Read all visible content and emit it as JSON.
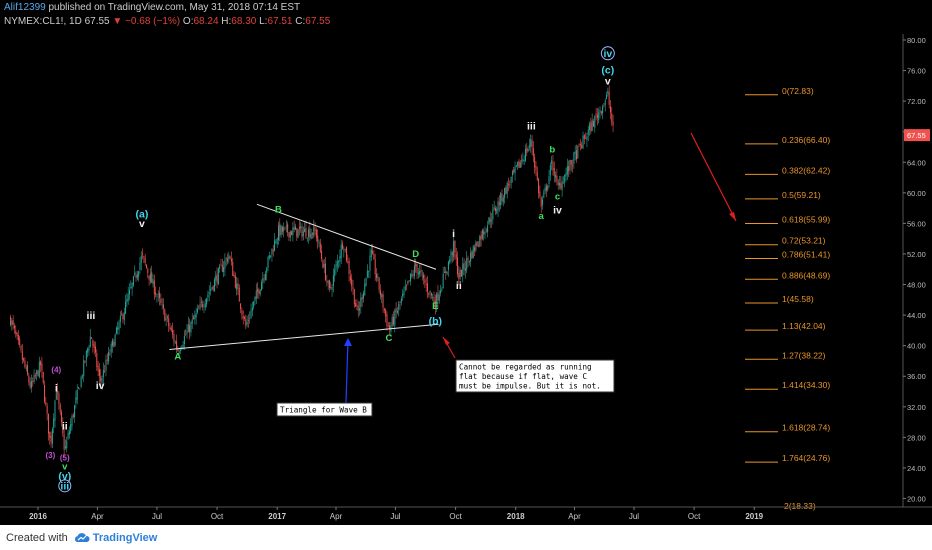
{
  "header": {
    "author": "Alif12399",
    "published": "published on TradingView.com, May 31, 2018 07:14 EST",
    "symbol": "NYMEX:CL1!, 1D",
    "last": "67.55",
    "change": "−0.68 (−1%)",
    "open_label": "O:",
    "open": "68.24",
    "high_label": "H:",
    "high": "68.30",
    "low_label": "L:",
    "low": "67.51",
    "close_label": "C:",
    "close": "67.55"
  },
  "footer": {
    "created": "Created with",
    "brand": "TradingView"
  },
  "price_tag": "67.55",
  "colors": {
    "up": "#26a69a",
    "down": "#ef5350",
    "fib": "#e8952a",
    "annotation_arrow_red": "#e02020",
    "annotation_arrow_blue": "#2040ff",
    "wave_cyan": "#40d8f0",
    "wave_green": "#40e060",
    "wave_purple": "#c050d0",
    "price_tag": "#ef5350"
  },
  "chart_data": {
    "type": "candlestick",
    "x_ticks": [
      "2016",
      "Apr",
      "Jul",
      "Oct",
      "2017",
      "Apr",
      "Jul",
      "Oct",
      "2018",
      "Apr",
      "Jul",
      "Oct",
      "2019"
    ],
    "y_ticks": [
      "80.00",
      "76.00",
      "72.00",
      "68.00",
      "64.00",
      "60.00",
      "56.00",
      "52.00",
      "48.00",
      "44.00",
      "40.00",
      "36.00",
      "32.00",
      "28.00",
      "24.00",
      "20.00"
    ],
    "ylim": [
      19,
      81
    ],
    "price_path": [
      {
        "date": "2015-11-20",
        "price": 43.5
      },
      {
        "date": "2015-12-21",
        "price": 34.5
      },
      {
        "date": "2016-01-05",
        "price": 37.5
      },
      {
        "date": "2016-01-20",
        "price": 27.0
      },
      {
        "date": "2016-01-29",
        "price": 34.5
      },
      {
        "date": "2016-02-11",
        "price": 26.2
      },
      {
        "date": "2016-03-22",
        "price": 41.5
      },
      {
        "date": "2016-04-05",
        "price": 35.2
      },
      {
        "date": "2016-06-08",
        "price": 51.7
      },
      {
        "date": "2016-08-02",
        "price": 39.5
      },
      {
        "date": "2016-10-19",
        "price": 51.9
      },
      {
        "date": "2016-11-14",
        "price": 42.5
      },
      {
        "date": "2017-01-03",
        "price": 55.0
      },
      {
        "date": "2017-03-01",
        "price": 54.9
      },
      {
        "date": "2017-03-22",
        "price": 47.0
      },
      {
        "date": "2017-04-12",
        "price": 53.8
      },
      {
        "date": "2017-05-04",
        "price": 44.0
      },
      {
        "date": "2017-05-25",
        "price": 52.0
      },
      {
        "date": "2017-06-21",
        "price": 42.0
      },
      {
        "date": "2017-08-01",
        "price": 50.4
      },
      {
        "date": "2017-08-31",
        "price": 45.6
      },
      {
        "date": "2017-09-28",
        "price": 52.9
      },
      {
        "date": "2017-10-06",
        "price": 49.0
      },
      {
        "date": "2018-01-25",
        "price": 66.7
      },
      {
        "date": "2018-02-09",
        "price": 58.1
      },
      {
        "date": "2018-02-26",
        "price": 64.0
      },
      {
        "date": "2018-03-06",
        "price": 60.5
      },
      {
        "date": "2018-05-22",
        "price": 72.8
      },
      {
        "date": "2018-05-31",
        "price": 67.55
      }
    ],
    "fibonacci": [
      {
        "ratio": "0",
        "value": "72.83"
      },
      {
        "ratio": "0.236",
        "value": "66.40"
      },
      {
        "ratio": "0.382",
        "value": "62.42"
      },
      {
        "ratio": "0.5",
        "value": "59.21"
      },
      {
        "ratio": "0.618",
        "value": "55.99"
      },
      {
        "ratio": "0.72",
        "value": "53.21"
      },
      {
        "ratio": "0.786",
        "value": "51.41"
      },
      {
        "ratio": "0.886",
        "value": "48.69"
      },
      {
        "ratio": "1",
        "value": "45.58"
      },
      {
        "ratio": "1.13",
        "value": "42.04"
      },
      {
        "ratio": "1.27",
        "value": "38.22"
      },
      {
        "ratio": "1.414",
        "value": "34.30"
      },
      {
        "ratio": "1.618",
        "value": "28.74"
      },
      {
        "ratio": "1.764",
        "value": "24.76"
      },
      {
        "ratio": "2",
        "value": "18.33"
      }
    ],
    "wave_labels": [
      {
        "text": "(3)",
        "date": "2016-01-20",
        "price": 25.3,
        "color": "purple"
      },
      {
        "text": "(4)",
        "date": "2016-01-29",
        "price": 36.5,
        "color": "purple"
      },
      {
        "text": "i",
        "date": "2016-01-29",
        "price": 34.0,
        "color": "white"
      },
      {
        "text": "ii",
        "date": "2016-02-11",
        "price": 29.0,
        "color": "white"
      },
      {
        "text": "(5)",
        "date": "2016-02-11",
        "price": 25.0,
        "color": "purple"
      },
      {
        "text": "v",
        "date": "2016-02-11",
        "price": 23.8,
        "color": "green"
      },
      {
        "text": "(v)",
        "date": "2016-02-11",
        "price": 22.5,
        "color": "cyan"
      },
      {
        "text": "iii",
        "date": "2016-02-11",
        "price": 21.2,
        "color": "cyan"
      },
      {
        "text": "iii",
        "date": "2016-03-22",
        "price": 43.5,
        "color": "white"
      },
      {
        "text": "iv",
        "date": "2016-04-05",
        "price": 34.3,
        "color": "white"
      },
      {
        "text": "(a)",
        "date": "2016-06-08",
        "price": 56.8,
        "color": "cyan"
      },
      {
        "text": "v",
        "date": "2016-06-08",
        "price": 55.5,
        "color": "white"
      },
      {
        "text": "A",
        "date": "2016-08-02",
        "price": 38.2,
        "color": "green"
      },
      {
        "text": "B",
        "date": "2017-01-03",
        "price": 57.4,
        "color": "green"
      },
      {
        "text": "C",
        "date": "2017-06-21",
        "price": 40.6,
        "color": "green"
      },
      {
        "text": "D",
        "date": "2017-08-01",
        "price": 51.6,
        "color": "green"
      },
      {
        "text": "E",
        "date": "2017-08-31",
        "price": 44.8,
        "color": "green"
      },
      {
        "text": "(b)",
        "date": "2017-08-31",
        "price": 42.8,
        "color": "cyan"
      },
      {
        "text": "i",
        "date": "2017-09-28",
        "price": 54.2,
        "color": "white"
      },
      {
        "text": "ii",
        "date": "2017-10-06",
        "price": 47.4,
        "color": "white"
      },
      {
        "text": "iii",
        "date": "2018-01-25",
        "price": 68.3,
        "color": "white"
      },
      {
        "text": "a",
        "date": "2018-02-09",
        "price": 56.6,
        "color": "green"
      },
      {
        "text": "b",
        "date": "2018-02-26",
        "price": 65.3,
        "color": "green"
      },
      {
        "text": "c",
        "date": "2018-03-06",
        "price": 59.1,
        "color": "green"
      },
      {
        "text": "iv",
        "date": "2018-03-06",
        "price": 57.3,
        "color": "white"
      },
      {
        "text": "v",
        "date": "2018-05-22",
        "price": 74.2,
        "color": "white"
      },
      {
        "text": "(c)",
        "date": "2018-05-22",
        "price": 75.6,
        "color": "cyan"
      },
      {
        "text": "iv",
        "date": "2018-05-22",
        "price": 77.8,
        "color": "cyan"
      }
    ],
    "triangle_lines": [
      {
        "from": {
          "date": "2016-12-01",
          "price": 58.5
        },
        "to": {
          "date": "2017-09-01",
          "price": 50.0
        }
      },
      {
        "from": {
          "date": "2016-07-20",
          "price": 39.5
        },
        "to": {
          "date": "2017-09-05",
          "price": 42.8
        }
      }
    ],
    "annotations": [
      {
        "name": "triangle-note",
        "text": [
          "Triangle for Wave B"
        ]
      },
      {
        "name": "running-flat-note",
        "text": [
          "Cannot be regarded as running",
          "flat because if flat, wave C",
          "must be impulse. But it is not."
        ]
      }
    ]
  }
}
